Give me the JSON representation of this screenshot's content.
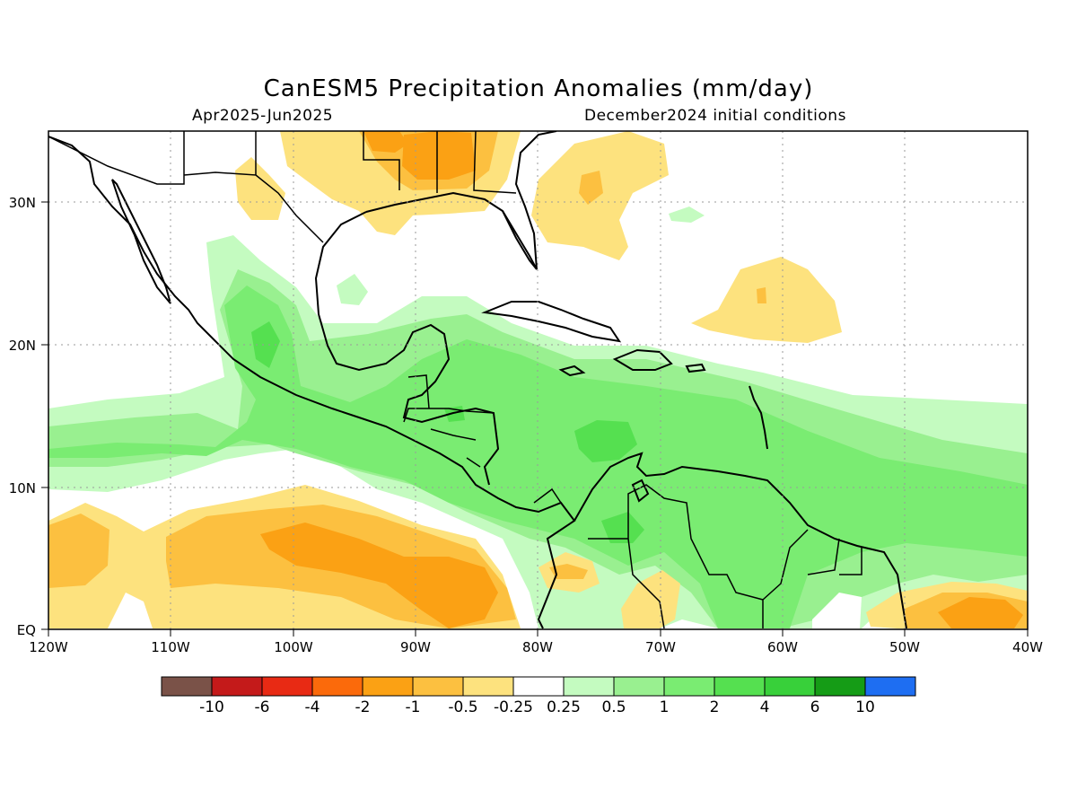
{
  "title": "CanESM5 Precipitation Anomalies (mm/day)",
  "period": "Apr2025-Jun2025",
  "init": "December2024 initial conditions",
  "colors": {
    "c_m10": "#7a5248",
    "c_m6": "#c41a1a",
    "c_m4": "#e82a14",
    "c_m2": "#fb6a0b",
    "c_m1": "#fba114",
    "c_m05": "#fcc040",
    "c_m025": "#fde27e",
    "c_0": "#ffffff",
    "c_025": "#c4fbc0",
    "c_05": "#99f090",
    "c_1": "#7aec72",
    "c_2": "#55e050",
    "c_4": "#38d03a",
    "c_6": "#159c16",
    "c_10": "#1e6ef2",
    "coast": "#000000",
    "grid": "#9a9a9a"
  },
  "map": {
    "lon_labels": [
      "120W",
      "110W",
      "100W",
      "90W",
      "80W",
      "70W",
      "60W",
      "50W",
      "40W"
    ],
    "lat_labels": [
      "EQ",
      "10N",
      "20N",
      "30N"
    ]
  },
  "colorbar": {
    "colors": [
      "#7a5248",
      "#c41a1a",
      "#e82a14",
      "#fb6a0b",
      "#fba114",
      "#fcc040",
      "#fde27e",
      "#ffffff",
      "#c4fbc0",
      "#99f090",
      "#7aec72",
      "#55e050",
      "#38d03a",
      "#159c16",
      "#1e6ef2"
    ],
    "labels": [
      "-10",
      "-6",
      "-4",
      "-2",
      "-1",
      "-0.5",
      "-0.25",
      "0.25",
      "0.5",
      "1",
      "2",
      "4",
      "6",
      "10"
    ]
  }
}
